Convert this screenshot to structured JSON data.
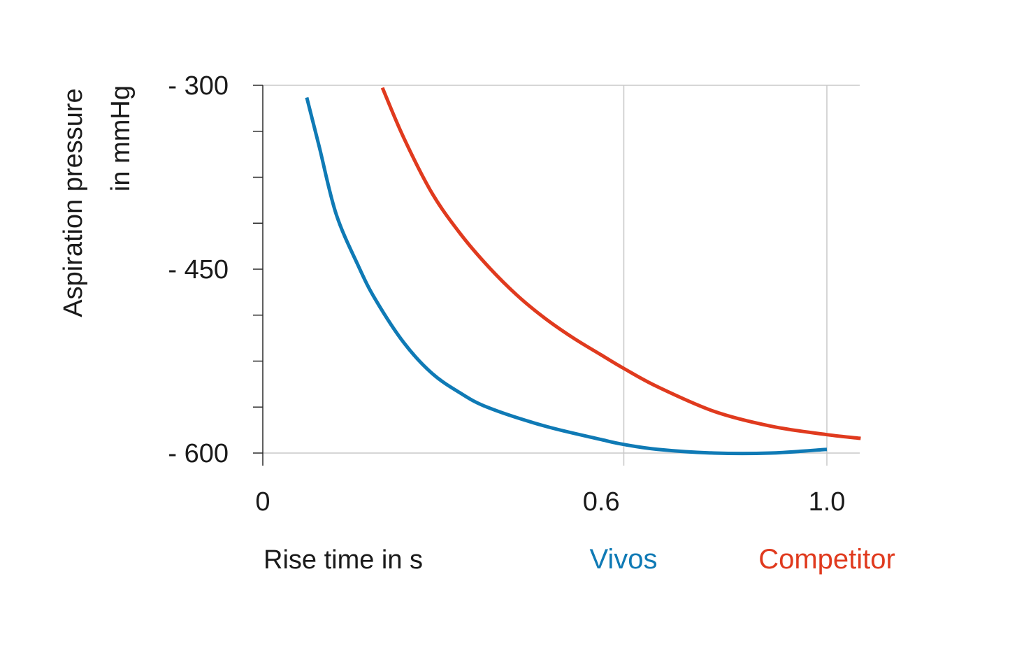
{
  "chart_data": {
    "type": "line",
    "title": "",
    "ylabel_lines": [
      "Aspiration pressure",
      "in mmHg"
    ],
    "xlabel": "Rise time in s",
    "xlim": [
      0,
      1.06
    ],
    "ylim": [
      -300,
      -600
    ],
    "y_ticks": [
      {
        "value": -300,
        "label": "- 300"
      },
      {
        "value": -450,
        "label": "- 450"
      },
      {
        "value": -600,
        "label": "- 600"
      }
    ],
    "y_minor_ticks": [
      -337.5,
      -375,
      -412.5,
      -487.5,
      -525,
      -562.5
    ],
    "x_ticks": [
      {
        "value": 0,
        "label": "0"
      },
      {
        "value": 0.6,
        "label": "0.6"
      },
      {
        "value": 1.0,
        "label": "1.0"
      }
    ],
    "x_gridlines": [
      0.64,
      1.0
    ],
    "grid": true,
    "series": [
      {
        "name": "Vivos",
        "color": "#0f7ab5",
        "x": [
          0.078,
          0.1,
          0.13,
          0.17,
          0.2,
          0.25,
          0.3,
          0.35,
          0.4,
          0.5,
          0.6,
          0.64,
          0.7,
          0.8,
          0.9,
          1.0
        ],
        "y": [
          -310,
          -350,
          -405,
          -448,
          -475,
          -510,
          -535,
          -551,
          -563,
          -578,
          -589,
          -593,
          -597,
          -600,
          -600,
          -597
        ]
      },
      {
        "name": "Competitor",
        "color": "#e03a1e",
        "x": [
          0.212,
          0.25,
          0.3,
          0.35,
          0.4,
          0.45,
          0.5,
          0.55,
          0.6,
          0.64,
          0.7,
          0.8,
          0.9,
          1.0,
          1.06
        ],
        "y": [
          -302,
          -343,
          -388,
          -421,
          -448,
          -471,
          -490,
          -506,
          -520,
          -531,
          -546,
          -566,
          -578,
          -585,
          -588
        ]
      }
    ],
    "legend": {
      "placement": "bottom",
      "entries": [
        "Vivos",
        "Competitor"
      ]
    }
  }
}
